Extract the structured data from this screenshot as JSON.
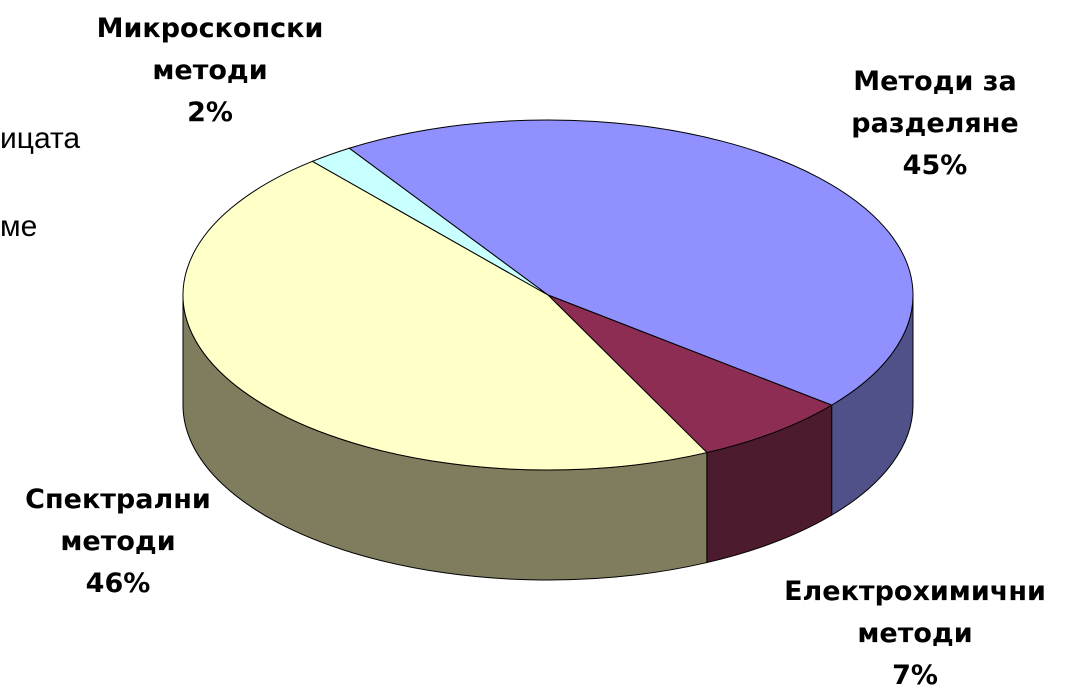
{
  "background_text": {
    "fragment_1": "ицата",
    "fragment_2": "ме"
  },
  "chart_data": {
    "type": "pie",
    "title": "",
    "style": "3d",
    "slices": [
      {
        "label_lines": [
          "Методи за",
          "разделяне"
        ],
        "value": 45,
        "value_text": "45%",
        "color": "#9090FF",
        "side_color": "#4F5188"
      },
      {
        "label_lines": [
          "Електрохимични",
          "методи"
        ],
        "value": 7,
        "value_text": "7%",
        "color": "#8E2D54",
        "side_color": "#4C1B2D"
      },
      {
        "label_lines": [
          "Спектрални",
          "методи"
        ],
        "value": 46,
        "value_text": "46%",
        "color": "#FFFFC8",
        "side_color": "#807D5E"
      },
      {
        "label_lines": [
          "Микроскопски",
          "методи"
        ],
        "value": 2,
        "value_text": "2%",
        "color": "#C8FFFF",
        "side_color": "#6E8C8C"
      }
    ]
  }
}
